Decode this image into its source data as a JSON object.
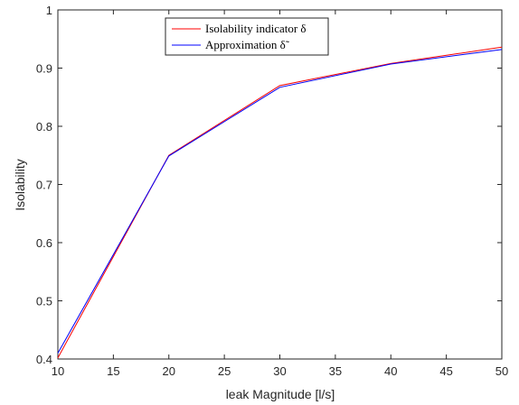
{
  "chart_data": {
    "type": "line",
    "title": "",
    "xlabel": "leak Magnitude [l/s]",
    "ylabel": "Isolability",
    "xlim": [
      10,
      50
    ],
    "ylim": [
      0.4,
      1
    ],
    "xticks": [
      10,
      15,
      20,
      25,
      30,
      35,
      40,
      45,
      50
    ],
    "yticks": [
      0.4,
      0.5,
      0.6,
      0.7,
      0.8,
      0.9,
      1
    ],
    "ytick_labels": [
      "0.4",
      "0.5",
      "0.6",
      "0.7",
      "0.8",
      "0.9",
      "1"
    ],
    "grid": false,
    "legend_position": "top-center",
    "x": [
      10,
      20,
      30,
      40,
      50
    ],
    "series": [
      {
        "name": "Isolability indicator δ",
        "color": "#ff0000",
        "values": [
          0.402,
          0.75,
          0.87,
          0.908,
          0.936
        ]
      },
      {
        "name": "Approximation δ̃",
        "color": "#0000ff",
        "values": [
          0.41,
          0.749,
          0.867,
          0.907,
          0.932
        ]
      }
    ]
  }
}
